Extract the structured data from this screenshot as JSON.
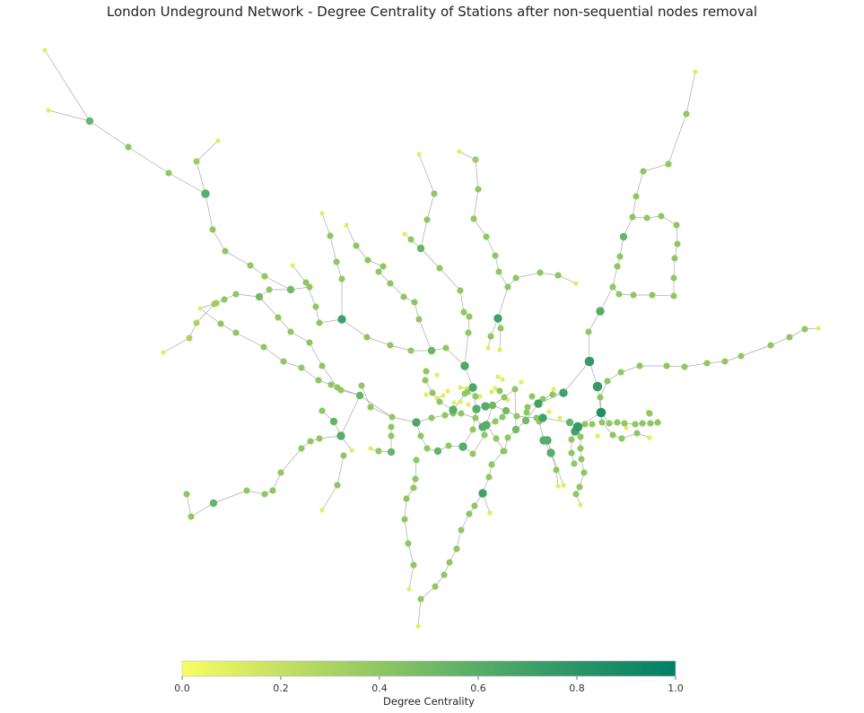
{
  "chart_data": {
    "type": "network",
    "title": "London Undeground Network - Degree Centrality of Stations after non-sequential nodes removal",
    "colorbar": {
      "label": "Degree Centrality",
      "range": [
        0.0,
        1.0
      ],
      "ticks": [
        "0.0",
        "0.2",
        "0.4",
        "0.6",
        "0.8",
        "1.0"
      ],
      "colormap": [
        "#f9fd63",
        "#c5e063",
        "#8ec763",
        "#57ad69",
        "#2b9467",
        "#008066"
      ]
    },
    "node_count_visible": 270,
    "edge_color": "#aaaaaa"
  }
}
